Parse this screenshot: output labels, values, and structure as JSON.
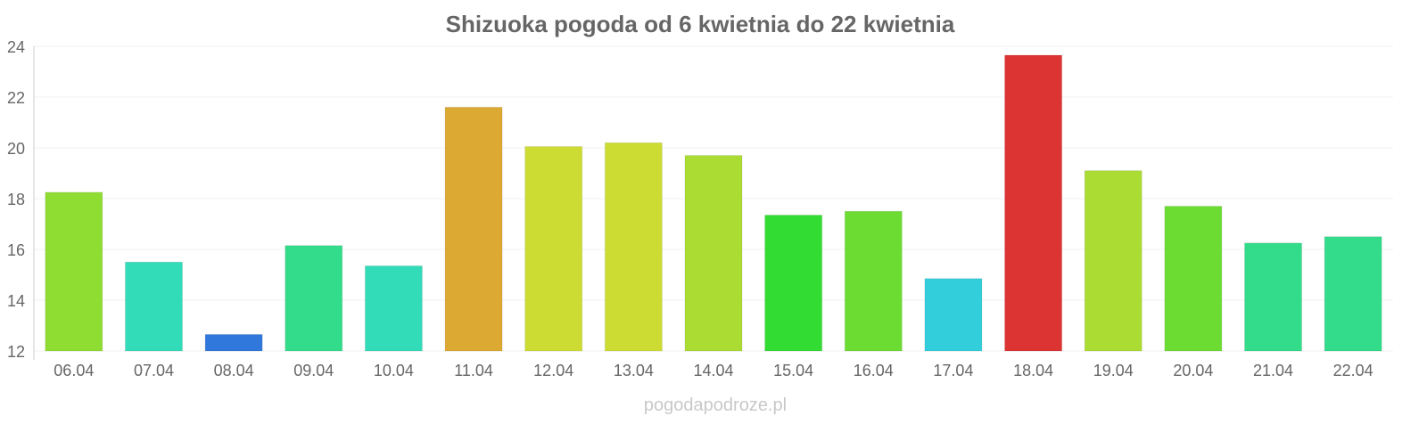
{
  "chart_data": {
    "type": "bar",
    "title": "Shizuoka pogoda od 6 kwietnia do 22 kwietnia",
    "xlabel": "",
    "ylabel": "",
    "ylim": [
      12,
      24
    ],
    "yticks": [
      12,
      14,
      16,
      18,
      20,
      22,
      24
    ],
    "grid": true,
    "categories": [
      "06.04",
      "07.04",
      "08.04",
      "09.04",
      "10.04",
      "11.04",
      "12.04",
      "13.04",
      "14.04",
      "15.04",
      "16.04",
      "17.04",
      "18.04",
      "19.04",
      "20.04",
      "21.04",
      "22.04"
    ],
    "values": [
      18.25,
      15.5,
      12.65,
      16.15,
      15.35,
      21.6,
      20.05,
      20.2,
      19.7,
      17.35,
      17.5,
      14.85,
      23.65,
      19.1,
      17.7,
      16.25,
      16.5
    ],
    "colors": [
      "#8fdc33",
      "#33dcb9",
      "#3178dc",
      "#33dc8a",
      "#33dcb9",
      "#dca933",
      "#cddc33",
      "#cddc33",
      "#abdc33",
      "#33dc33",
      "#6cdc33",
      "#33cedc",
      "#dc3333",
      "#abdc33",
      "#6cdc33",
      "#33dc8a",
      "#33dc8a"
    ]
  },
  "watermark": "pogodapodroze.pl"
}
